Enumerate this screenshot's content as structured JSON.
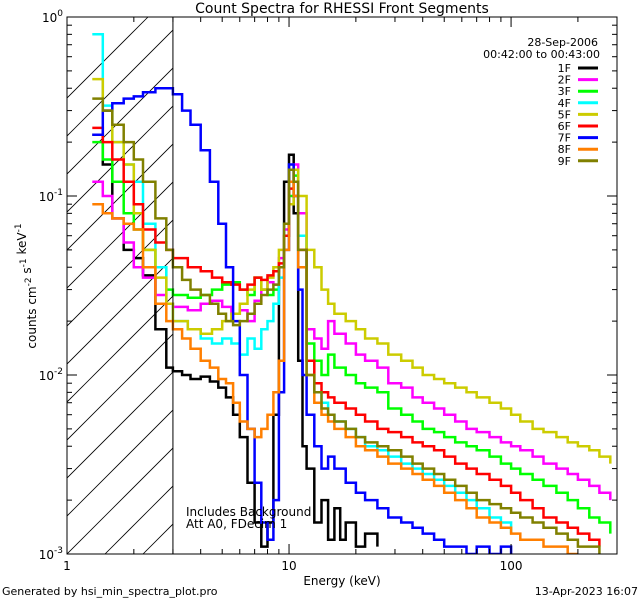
{
  "chart_data": {
    "type": "line",
    "title": "Count Spectra for RHESSI Front Segments",
    "xlabel": "Energy (keV)",
    "ylabel": "counts cm^-2 s^-1 keV^-1",
    "xscale": "log",
    "yscale": "log",
    "xlim": [
      1,
      300
    ],
    "ylim": [
      0.001,
      1
    ],
    "x_ticks": [
      1,
      10,
      100
    ],
    "x_tick_labels": [
      "1",
      "10",
      "100"
    ],
    "y_ticks": [
      0.001,
      0.01,
      0.1,
      1
    ],
    "y_tick_labels": [
      "10^-3",
      "10^-2",
      "10^-1",
      "10^0"
    ],
    "legend_position": "top-right",
    "date": "28-Sep-2006",
    "time_range": "00:42:00 to 00:43:00",
    "annotation_line1": "Includes Background",
    "annotation_line2": "Att A0, FDecim 1",
    "attenuator_cutoff_kev": 3,
    "footer_left": "Generated by hsi_min_spectra_plot.pro",
    "footer_right": "13-Apr-2023 16:07",
    "series": [
      {
        "name": "1F",
        "color": "#000000",
        "x": [
          1.3,
          1.45,
          1.6,
          1.8,
          2.0,
          2.2,
          2.5,
          2.8,
          3.0,
          3.3,
          3.6,
          4.0,
          4.4,
          4.8,
          5.2,
          5.6,
          6.0,
          6.5,
          7.0,
          7.5,
          8.0,
          8.5,
          9.0,
          9.5,
          10.0,
          10.5,
          11.0,
          11.5,
          12.0,
          13,
          14,
          15,
          16,
          17,
          18,
          20,
          22,
          25
        ],
        "y": [
          0.22,
          0.15,
          0.075,
          0.05,
          0.045,
          0.036,
          0.018,
          0.011,
          0.0105,
          0.01,
          0.0095,
          0.0098,
          0.0092,
          0.0085,
          0.0075,
          0.006,
          0.0045,
          0.0025,
          0.0015,
          0.0011,
          0.0015,
          0.006,
          0.04,
          0.12,
          0.17,
          0.08,
          0.012,
          0.004,
          0.003,
          0.0015,
          0.002,
          0.0012,
          0.0018,
          0.0012,
          0.0015,
          0.0011,
          0.0013,
          0.0011
        ]
      },
      {
        "name": "2F",
        "color": "#ff00ff",
        "x": [
          1.3,
          1.45,
          1.6,
          1.8,
          2.0,
          2.2,
          2.5,
          2.8,
          3.0,
          3.5,
          4.0,
          4.5,
          5.0,
          5.5,
          6.0,
          6.5,
          7.0,
          7.5,
          8.0,
          8.5,
          9.0,
          9.5,
          10.0,
          10.5,
          11.0,
          12,
          13,
          14,
          15,
          16,
          18,
          20,
          22,
          25,
          28,
          32,
          36,
          40,
          45,
          50,
          56,
          63,
          70,
          80,
          90,
          100,
          110,
          125,
          140,
          160,
          180,
          200,
          225,
          250,
          280
        ],
        "y": [
          0.12,
          0.1,
          0.075,
          0.055,
          0.04,
          0.035,
          0.028,
          0.025,
          0.024,
          0.023,
          0.025,
          0.026,
          0.024,
          0.022,
          0.023,
          0.02,
          0.026,
          0.03,
          0.033,
          0.032,
          0.045,
          0.065,
          0.12,
          0.15,
          0.08,
          0.018,
          0.016,
          0.014,
          0.02,
          0.017,
          0.015,
          0.013,
          0.012,
          0.011,
          0.009,
          0.0085,
          0.0075,
          0.007,
          0.0065,
          0.006,
          0.0055,
          0.005,
          0.0048,
          0.0045,
          0.0042,
          0.004,
          0.0038,
          0.0035,
          0.0032,
          0.003,
          0.0028,
          0.0026,
          0.0024,
          0.0022,
          0.002
        ]
      },
      {
        "name": "3F",
        "color": "#00ff00",
        "x": [
          1.3,
          1.45,
          1.6,
          1.8,
          2.0,
          2.2,
          2.5,
          2.8,
          3.0,
          3.5,
          4.0,
          4.5,
          5.0,
          5.5,
          6.0,
          6.5,
          7.0,
          7.5,
          8.0,
          8.5,
          9.0,
          9.5,
          10.0,
          10.5,
          11.0,
          12,
          13,
          14,
          15,
          16,
          18,
          20,
          22,
          25,
          28,
          32,
          36,
          40,
          45,
          50,
          56,
          63,
          70,
          80,
          90,
          100,
          110,
          125,
          140,
          160,
          180,
          200,
          225,
          250,
          280
        ],
        "y": [
          0.2,
          0.16,
          0.12,
          0.08,
          0.065,
          0.05,
          0.04,
          0.03,
          0.028,
          0.027,
          0.028,
          0.03,
          0.032,
          0.033,
          0.03,
          0.028,
          0.035,
          0.03,
          0.028,
          0.03,
          0.04,
          0.06,
          0.1,
          0.13,
          0.06,
          0.015,
          0.012,
          0.01,
          0.013,
          0.011,
          0.01,
          0.009,
          0.0085,
          0.008,
          0.0065,
          0.006,
          0.0055,
          0.005,
          0.0048,
          0.0045,
          0.0042,
          0.004,
          0.0038,
          0.0035,
          0.0032,
          0.003,
          0.0028,
          0.0026,
          0.0024,
          0.0022,
          0.002,
          0.0018,
          0.0016,
          0.0015,
          0.0013
        ]
      },
      {
        "name": "4F",
        "color": "#00ffff",
        "x": [
          1.3,
          1.45,
          1.6,
          1.8,
          2.0,
          2.2,
          2.5,
          2.8,
          3.0,
          3.5,
          4.0,
          4.5,
          5.0,
          5.5,
          6.0,
          6.5,
          7.0,
          7.5,
          8.0,
          8.5,
          9.0,
          9.5,
          10.0,
          10.5,
          11.0,
          12,
          13,
          14,
          15,
          16,
          18,
          20,
          22,
          25,
          28,
          32,
          36,
          40,
          45,
          50,
          56,
          63,
          70,
          80,
          90,
          100
        ],
        "y": [
          0.8,
          0.32,
          0.2,
          0.15,
          0.12,
          0.07,
          0.04,
          0.025,
          0.02,
          0.018,
          0.016,
          0.015,
          0.016,
          0.015,
          0.013,
          0.016,
          0.014,
          0.018,
          0.02,
          0.025,
          0.035,
          0.07,
          0.12,
          0.14,
          0.06,
          0.012,
          0.008,
          0.007,
          0.006,
          0.0055,
          0.005,
          0.0045,
          0.004,
          0.0038,
          0.0035,
          0.0032,
          0.003,
          0.0028,
          0.0026,
          0.0024,
          0.0022,
          0.002,
          0.0018,
          0.0016,
          0.0015,
          0.0013
        ]
      },
      {
        "name": "5F",
        "color": "#cccc00",
        "x": [
          1.3,
          1.45,
          1.6,
          1.8,
          2.0,
          2.2,
          2.5,
          2.8,
          3.0,
          3.5,
          4.0,
          4.5,
          5.0,
          5.5,
          6.0,
          6.5,
          7.0,
          7.5,
          8.0,
          8.5,
          9.0,
          9.5,
          10.0,
          10.5,
          11.0,
          12,
          13,
          14,
          15,
          16,
          18,
          20,
          22,
          25,
          28,
          32,
          36,
          40,
          45,
          50,
          56,
          63,
          70,
          80,
          90,
          100,
          110,
          125,
          140,
          160,
          180,
          200,
          225,
          250,
          280
        ],
        "y": [
          0.45,
          0.3,
          0.2,
          0.15,
          0.08,
          0.05,
          0.035,
          0.025,
          0.02,
          0.018,
          0.017,
          0.018,
          0.02,
          0.022,
          0.025,
          0.03,
          0.035,
          0.03,
          0.035,
          0.04,
          0.05,
          0.06,
          0.09,
          0.14,
          0.1,
          0.05,
          0.04,
          0.03,
          0.025,
          0.022,
          0.02,
          0.018,
          0.016,
          0.015,
          0.013,
          0.012,
          0.011,
          0.01,
          0.0095,
          0.009,
          0.0085,
          0.008,
          0.0075,
          0.007,
          0.0065,
          0.006,
          0.0055,
          0.005,
          0.0048,
          0.0045,
          0.0042,
          0.004,
          0.0038,
          0.0035,
          0.0032
        ]
      },
      {
        "name": "6F",
        "color": "#ff0000",
        "x": [
          1.3,
          1.45,
          1.6,
          1.8,
          2.0,
          2.2,
          2.5,
          2.8,
          3.0,
          3.5,
          4.0,
          4.5,
          5.0,
          5.5,
          6.0,
          6.5,
          7.0,
          7.5,
          8.0,
          8.5,
          9.0,
          9.5,
          10.0,
          10.5,
          11.0,
          12,
          13,
          14,
          15,
          16,
          18,
          20,
          22,
          25,
          28,
          32,
          36,
          40,
          45,
          50,
          56,
          63,
          70,
          80,
          90,
          100,
          110,
          125,
          140,
          160,
          180,
          200,
          225,
          250
        ],
        "y": [
          0.24,
          0.2,
          0.16,
          0.12,
          0.09,
          0.065,
          0.055,
          0.05,
          0.045,
          0.04,
          0.038,
          0.035,
          0.033,
          0.032,
          0.03,
          0.032,
          0.035,
          0.034,
          0.036,
          0.038,
          0.042,
          0.06,
          0.11,
          0.12,
          0.05,
          0.012,
          0.009,
          0.008,
          0.0075,
          0.007,
          0.0065,
          0.006,
          0.0055,
          0.005,
          0.0048,
          0.0045,
          0.0042,
          0.004,
          0.0038,
          0.0035,
          0.0032,
          0.003,
          0.0028,
          0.0026,
          0.0024,
          0.0022,
          0.002,
          0.0018,
          0.0016,
          0.0015,
          0.0014,
          0.0013,
          0.0012,
          0.0011
        ]
      },
      {
        "name": "7F",
        "color": "#0000ff",
        "x": [
          1.3,
          1.45,
          1.6,
          1.8,
          2.0,
          2.2,
          2.5,
          2.8,
          3.0,
          3.3,
          3.6,
          4.0,
          4.4,
          4.8,
          5.2,
          5.6,
          6.0,
          6.5,
          7.0,
          7.5,
          8.0,
          8.5,
          9.0,
          9.5,
          10.0,
          10.5,
          11.0,
          11.5,
          12,
          13,
          14,
          15,
          16,
          18,
          20,
          22,
          25,
          28,
          32,
          36,
          40,
          45,
          50,
          56,
          63,
          70,
          80,
          90,
          100
        ],
        "y": [
          0.22,
          0.3,
          0.33,
          0.35,
          0.36,
          0.38,
          0.4,
          0.4,
          0.37,
          0.3,
          0.25,
          0.18,
          0.12,
          0.07,
          0.04,
          0.02,
          0.01,
          0.005,
          0.0025,
          0.0015,
          0.0012,
          0.002,
          0.008,
          0.05,
          0.15,
          0.1,
          0.03,
          0.01,
          0.006,
          0.004,
          0.003,
          0.0035,
          0.003,
          0.0025,
          0.0022,
          0.002,
          0.0018,
          0.0016,
          0.0015,
          0.0014,
          0.0013,
          0.0012,
          0.0011,
          0.0011,
          0.001,
          0.0011,
          0.001,
          0.0011,
          0.001
        ]
      },
      {
        "name": "8F",
        "color": "#ff7f00",
        "x": [
          1.3,
          1.45,
          1.6,
          1.8,
          2.0,
          2.2,
          2.5,
          2.8,
          3.0,
          3.3,
          3.6,
          4.0,
          4.4,
          4.8,
          5.2,
          5.6,
          6.0,
          6.5,
          7.0,
          7.5,
          8.0,
          8.5,
          9.0,
          9.5,
          10.0,
          10.5,
          11.0,
          12,
          13,
          14,
          15,
          16,
          18,
          20,
          22,
          25,
          28,
          32,
          36,
          40,
          45,
          50,
          56,
          63,
          70,
          80,
          90,
          100,
          110,
          125,
          140,
          160,
          180,
          200
        ],
        "y": [
          0.09,
          0.08,
          0.075,
          0.07,
          0.065,
          0.04,
          0.025,
          0.02,
          0.018,
          0.016,
          0.014,
          0.012,
          0.011,
          0.0095,
          0.009,
          0.007,
          0.0055,
          0.005,
          0.0045,
          0.005,
          0.006,
          0.008,
          0.012,
          0.05,
          0.12,
          0.1,
          0.04,
          0.01,
          0.007,
          0.006,
          0.0055,
          0.005,
          0.0045,
          0.004,
          0.0038,
          0.0035,
          0.0032,
          0.003,
          0.0028,
          0.0026,
          0.0024,
          0.0022,
          0.002,
          0.0018,
          0.0016,
          0.0015,
          0.0014,
          0.0013,
          0.0012,
          0.0012,
          0.0011,
          0.0011,
          0.001,
          0.001
        ]
      },
      {
        "name": "9F",
        "color": "#808000",
        "x": [
          1.3,
          1.45,
          1.6,
          1.8,
          2.0,
          2.2,
          2.5,
          2.8,
          3.0,
          3.3,
          3.6,
          4.0,
          4.4,
          4.8,
          5.2,
          5.6,
          6.0,
          6.5,
          7.0,
          7.5,
          8.0,
          8.5,
          9.0,
          9.5,
          10.0,
          10.5,
          11.0,
          12,
          13,
          14,
          15,
          16,
          18,
          20,
          22,
          25,
          28,
          32,
          36,
          40,
          45,
          50,
          56,
          63,
          70,
          80,
          90,
          100,
          110,
          125,
          140,
          160,
          180,
          200,
          225,
          250
        ],
        "y": [
          0.35,
          0.3,
          0.25,
          0.2,
          0.16,
          0.12,
          0.075,
          0.05,
          0.04,
          0.034,
          0.03,
          0.028,
          0.025,
          0.022,
          0.02,
          0.019,
          0.02,
          0.022,
          0.025,
          0.028,
          0.03,
          0.032,
          0.04,
          0.07,
          0.14,
          0.12,
          0.05,
          0.01,
          0.008,
          0.0065,
          0.006,
          0.0055,
          0.005,
          0.0045,
          0.0042,
          0.004,
          0.0038,
          0.0035,
          0.0032,
          0.003,
          0.0028,
          0.0026,
          0.0024,
          0.0022,
          0.002,
          0.0019,
          0.0018,
          0.0017,
          0.0016,
          0.0015,
          0.0014,
          0.0013,
          0.0012,
          0.0011,
          0.0011,
          0.001
        ]
      }
    ]
  }
}
